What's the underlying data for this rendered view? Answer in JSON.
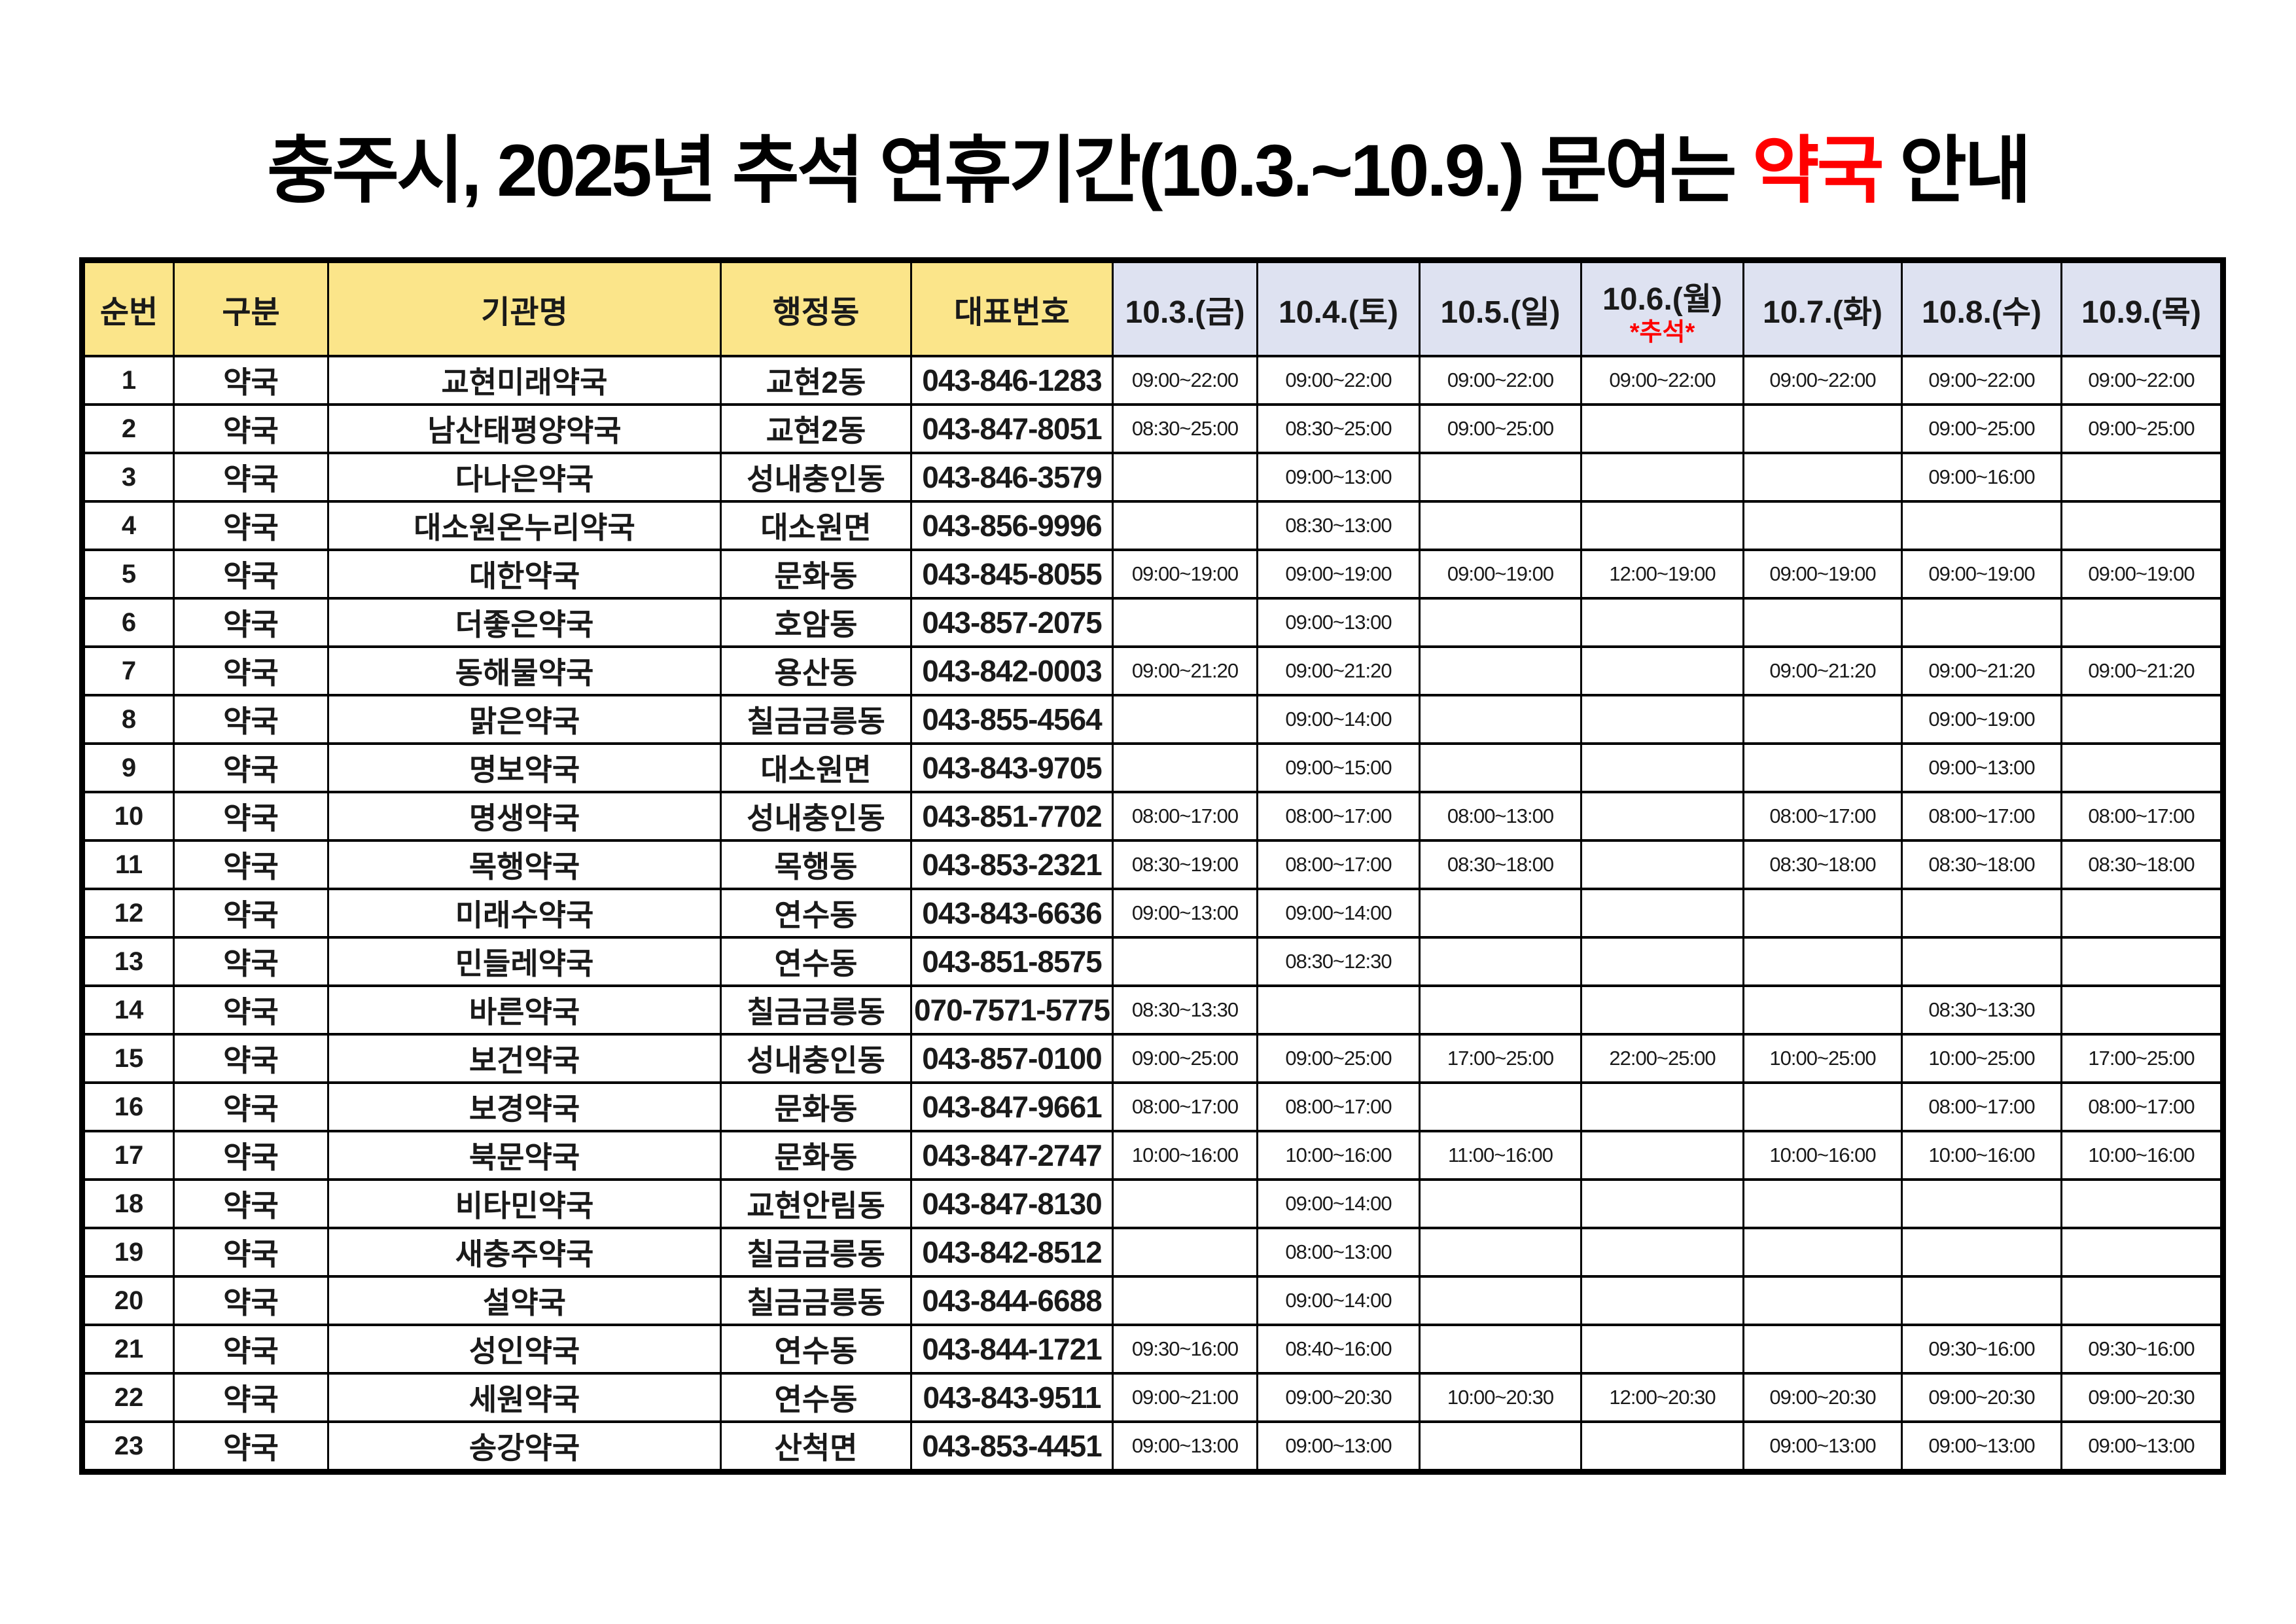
{
  "title": {
    "prefix": "충주시, 2025년 추석 연휴기간(10.3.~10.9.) 문여는 ",
    "highlight": "약국",
    "suffix": " 안내"
  },
  "colors": {
    "header_yellow": "#fbe58a",
    "header_lavender": "#dee2f1",
    "highlight_red": "#ff0000",
    "border_black": "#000000"
  },
  "table": {
    "headers": [
      "순번",
      "구분",
      "기관명",
      "행정동",
      "대표번호"
    ],
    "date_headers": [
      {
        "label": "10.3.(금)",
        "sub": ""
      },
      {
        "label": "10.4.(토)",
        "sub": ""
      },
      {
        "label": "10.5.(일)",
        "sub": ""
      },
      {
        "label": "10.6.(월)",
        "sub": "*추석*"
      },
      {
        "label": "10.7.(화)",
        "sub": ""
      },
      {
        "label": "10.8.(수)",
        "sub": ""
      },
      {
        "label": "10.9.(목)",
        "sub": ""
      }
    ],
    "rows": [
      {
        "no": "1",
        "type": "약국",
        "name": "교현미래약국",
        "dong": "교현2동",
        "phone": "043-846-1283",
        "hours": [
          "09:00~22:00",
          "09:00~22:00",
          "09:00~22:00",
          "09:00~22:00",
          "09:00~22:00",
          "09:00~22:00",
          "09:00~22:00"
        ]
      },
      {
        "no": "2",
        "type": "약국",
        "name": "남산태평양약국",
        "dong": "교현2동",
        "phone": "043-847-8051",
        "hours": [
          "08:30~25:00",
          "08:30~25:00",
          "09:00~25:00",
          "",
          "",
          "09:00~25:00",
          "09:00~25:00"
        ]
      },
      {
        "no": "3",
        "type": "약국",
        "name": "다나은약국",
        "dong": "성내충인동",
        "phone": "043-846-3579",
        "hours": [
          "",
          "09:00~13:00",
          "",
          "",
          "",
          "09:00~16:00",
          ""
        ]
      },
      {
        "no": "4",
        "type": "약국",
        "name": "대소원온누리약국",
        "dong": "대소원면",
        "phone": "043-856-9996",
        "hours": [
          "",
          "08:30~13:00",
          "",
          "",
          "",
          "",
          ""
        ]
      },
      {
        "no": "5",
        "type": "약국",
        "name": "대한약국",
        "dong": "문화동",
        "phone": "043-845-8055",
        "hours": [
          "09:00~19:00",
          "09:00~19:00",
          "09:00~19:00",
          "12:00~19:00",
          "09:00~19:00",
          "09:00~19:00",
          "09:00~19:00"
        ]
      },
      {
        "no": "6",
        "type": "약국",
        "name": "더좋은약국",
        "dong": "호암동",
        "phone": "043-857-2075",
        "hours": [
          "",
          "09:00~13:00",
          "",
          "",
          "",
          "",
          ""
        ]
      },
      {
        "no": "7",
        "type": "약국",
        "name": "동해물약국",
        "dong": "용산동",
        "phone": "043-842-0003",
        "hours": [
          "09:00~21:20",
          "09:00~21:20",
          "",
          "",
          "09:00~21:20",
          "09:00~21:20",
          "09:00~21:20"
        ]
      },
      {
        "no": "8",
        "type": "약국",
        "name": "맑은약국",
        "dong": "칠금금릉동",
        "phone": "043-855-4564",
        "hours": [
          "",
          "09:00~14:00",
          "",
          "",
          "",
          "09:00~19:00",
          ""
        ]
      },
      {
        "no": "9",
        "type": "약국",
        "name": "명보약국",
        "dong": "대소원면",
        "phone": "043-843-9705",
        "hours": [
          "",
          "09:00~15:00",
          "",
          "",
          "",
          "09:00~13:00",
          ""
        ]
      },
      {
        "no": "10",
        "type": "약국",
        "name": "명생약국",
        "dong": "성내충인동",
        "phone": "043-851-7702",
        "hours": [
          "08:00~17:00",
          "08:00~17:00",
          "08:00~13:00",
          "",
          "08:00~17:00",
          "08:00~17:00",
          "08:00~17:00"
        ]
      },
      {
        "no": "11",
        "type": "약국",
        "name": "목행약국",
        "dong": "목행동",
        "phone": "043-853-2321",
        "hours": [
          "08:30~19:00",
          "08:00~17:00",
          "08:30~18:00",
          "",
          "08:30~18:00",
          "08:30~18:00",
          "08:30~18:00"
        ]
      },
      {
        "no": "12",
        "type": "약국",
        "name": "미래수약국",
        "dong": "연수동",
        "phone": "043-843-6636",
        "hours": [
          "09:00~13:00",
          "09:00~14:00",
          "",
          "",
          "",
          "",
          ""
        ]
      },
      {
        "no": "13",
        "type": "약국",
        "name": "민들레약국",
        "dong": "연수동",
        "phone": "043-851-8575",
        "hours": [
          "",
          "08:30~12:30",
          "",
          "",
          "",
          "",
          ""
        ]
      },
      {
        "no": "14",
        "type": "약국",
        "name": "바른약국",
        "dong": "칠금금릉동",
        "phone": "070-7571-5775",
        "hours": [
          "08:30~13:30",
          "",
          "",
          "",
          "",
          "08:30~13:30",
          ""
        ]
      },
      {
        "no": "15",
        "type": "약국",
        "name": "보건약국",
        "dong": "성내충인동",
        "phone": "043-857-0100",
        "hours": [
          "09:00~25:00",
          "09:00~25:00",
          "17:00~25:00",
          "22:00~25:00",
          "10:00~25:00",
          "10:00~25:00",
          "17:00~25:00"
        ]
      },
      {
        "no": "16",
        "type": "약국",
        "name": "보경약국",
        "dong": "문화동",
        "phone": "043-847-9661",
        "hours": [
          "08:00~17:00",
          "08:00~17:00",
          "",
          "",
          "",
          "08:00~17:00",
          "08:00~17:00"
        ]
      },
      {
        "no": "17",
        "type": "약국",
        "name": "북문약국",
        "dong": "문화동",
        "phone": "043-847-2747",
        "hours": [
          "10:00~16:00",
          "10:00~16:00",
          "11:00~16:00",
          "",
          "10:00~16:00",
          "10:00~16:00",
          "10:00~16:00"
        ]
      },
      {
        "no": "18",
        "type": "약국",
        "name": "비타민약국",
        "dong": "교현안림동",
        "phone": "043-847-8130",
        "hours": [
          "",
          "09:00~14:00",
          "",
          "",
          "",
          "",
          ""
        ]
      },
      {
        "no": "19",
        "type": "약국",
        "name": "새충주약국",
        "dong": "칠금금릉동",
        "phone": "043-842-8512",
        "hours": [
          "",
          "08:00~13:00",
          "",
          "",
          "",
          "",
          ""
        ]
      },
      {
        "no": "20",
        "type": "약국",
        "name": "설약국",
        "dong": "칠금금릉동",
        "phone": "043-844-6688",
        "hours": [
          "",
          "09:00~14:00",
          "",
          "",
          "",
          "",
          ""
        ]
      },
      {
        "no": "21",
        "type": "약국",
        "name": "성인약국",
        "dong": "연수동",
        "phone": "043-844-1721",
        "hours": [
          "09:30~16:00",
          "08:40~16:00",
          "",
          "",
          "",
          "09:30~16:00",
          "09:30~16:00"
        ]
      },
      {
        "no": "22",
        "type": "약국",
        "name": "세원약국",
        "dong": "연수동",
        "phone": "043-843-9511",
        "hours": [
          "09:00~21:00",
          "09:00~20:30",
          "10:00~20:30",
          "12:00~20:30",
          "09:00~20:30",
          "09:00~20:30",
          "09:00~20:30"
        ]
      },
      {
        "no": "23",
        "type": "약국",
        "name": "송강약국",
        "dong": "산척면",
        "phone": "043-853-4451",
        "hours": [
          "09:00~13:00",
          "09:00~13:00",
          "",
          "",
          "09:00~13:00",
          "09:00~13:00",
          "09:00~13:00"
        ]
      }
    ]
  }
}
